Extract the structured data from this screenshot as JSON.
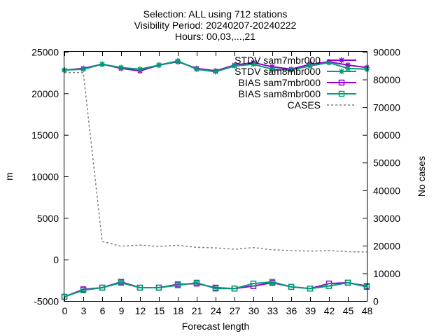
{
  "chart_data": {
    "type": "line",
    "title_lines": [
      "Selection: ALL using   712 stations",
      "Visibility   Period: 20240207-20240222",
      "Hours: 00,03,...,21"
    ],
    "xlabel": "Forecast length",
    "ylabel": "m",
    "y2label": "No cases",
    "x": [
      0,
      3,
      6,
      9,
      12,
      15,
      18,
      21,
      24,
      27,
      30,
      33,
      36,
      39,
      42,
      45,
      48
    ],
    "xlim": [
      0,
      48
    ],
    "ylim": [
      -5000,
      25000
    ],
    "y2lim": [
      0,
      90000
    ],
    "x_ticks": [
      0,
      3,
      6,
      9,
      12,
      15,
      18,
      21,
      24,
      27,
      30,
      33,
      36,
      39,
      42,
      45,
      48
    ],
    "y_ticks": [
      -5000,
      0,
      5000,
      10000,
      15000,
      20000,
      25000
    ],
    "y2_ticks": [
      0,
      10000,
      20000,
      30000,
      40000,
      50000,
      60000,
      70000,
      80000,
      90000
    ],
    "grid": false,
    "legend_position": "top-right",
    "series": [
      {
        "name": "STDV sam7mbr000",
        "axis": "y",
        "color": "#9400d3",
        "marker": "asterisk",
        "values": [
          22800,
          23000,
          23500,
          23000,
          22700,
          23400,
          23800,
          23000,
          22700,
          23400,
          23700,
          23200,
          22900,
          23500,
          23800,
          23400,
          23100
        ]
      },
      {
        "name": "STDV sam8mbr000",
        "axis": "y",
        "color": "#009e73",
        "marker": "asterisk",
        "values": [
          22800,
          22900,
          23500,
          23100,
          22900,
          23400,
          23900,
          22900,
          22600,
          23300,
          23500,
          22900,
          22800,
          23300,
          23700,
          23000,
          22900
        ]
      },
      {
        "name": "BIAS sam7mbr000",
        "axis": "y",
        "color": "#9400d3",
        "marker": "square",
        "values": [
          -4500,
          -3600,
          -3400,
          -2700,
          -3400,
          -3400,
          -3000,
          -2900,
          -3400,
          -3500,
          -3200,
          -2800,
          -3300,
          -3500,
          -2900,
          -2800,
          -3200
        ]
      },
      {
        "name": "BIAS sam8mbr000",
        "axis": "y",
        "color": "#009e73",
        "marker": "square",
        "values": [
          -4500,
          -3700,
          -3400,
          -2800,
          -3400,
          -3400,
          -3100,
          -2800,
          -3500,
          -3500,
          -2900,
          -2700,
          -3300,
          -3500,
          -3200,
          -2800,
          -3300
        ]
      },
      {
        "name": "CASES",
        "axis": "y2",
        "color": "#808080",
        "style": "dashed",
        "values": [
          82500,
          82500,
          21500,
          19800,
          20200,
          19700,
          20100,
          19400,
          19200,
          18700,
          19300,
          18500,
          18200,
          18000,
          18200,
          17800,
          17700
        ]
      }
    ]
  }
}
